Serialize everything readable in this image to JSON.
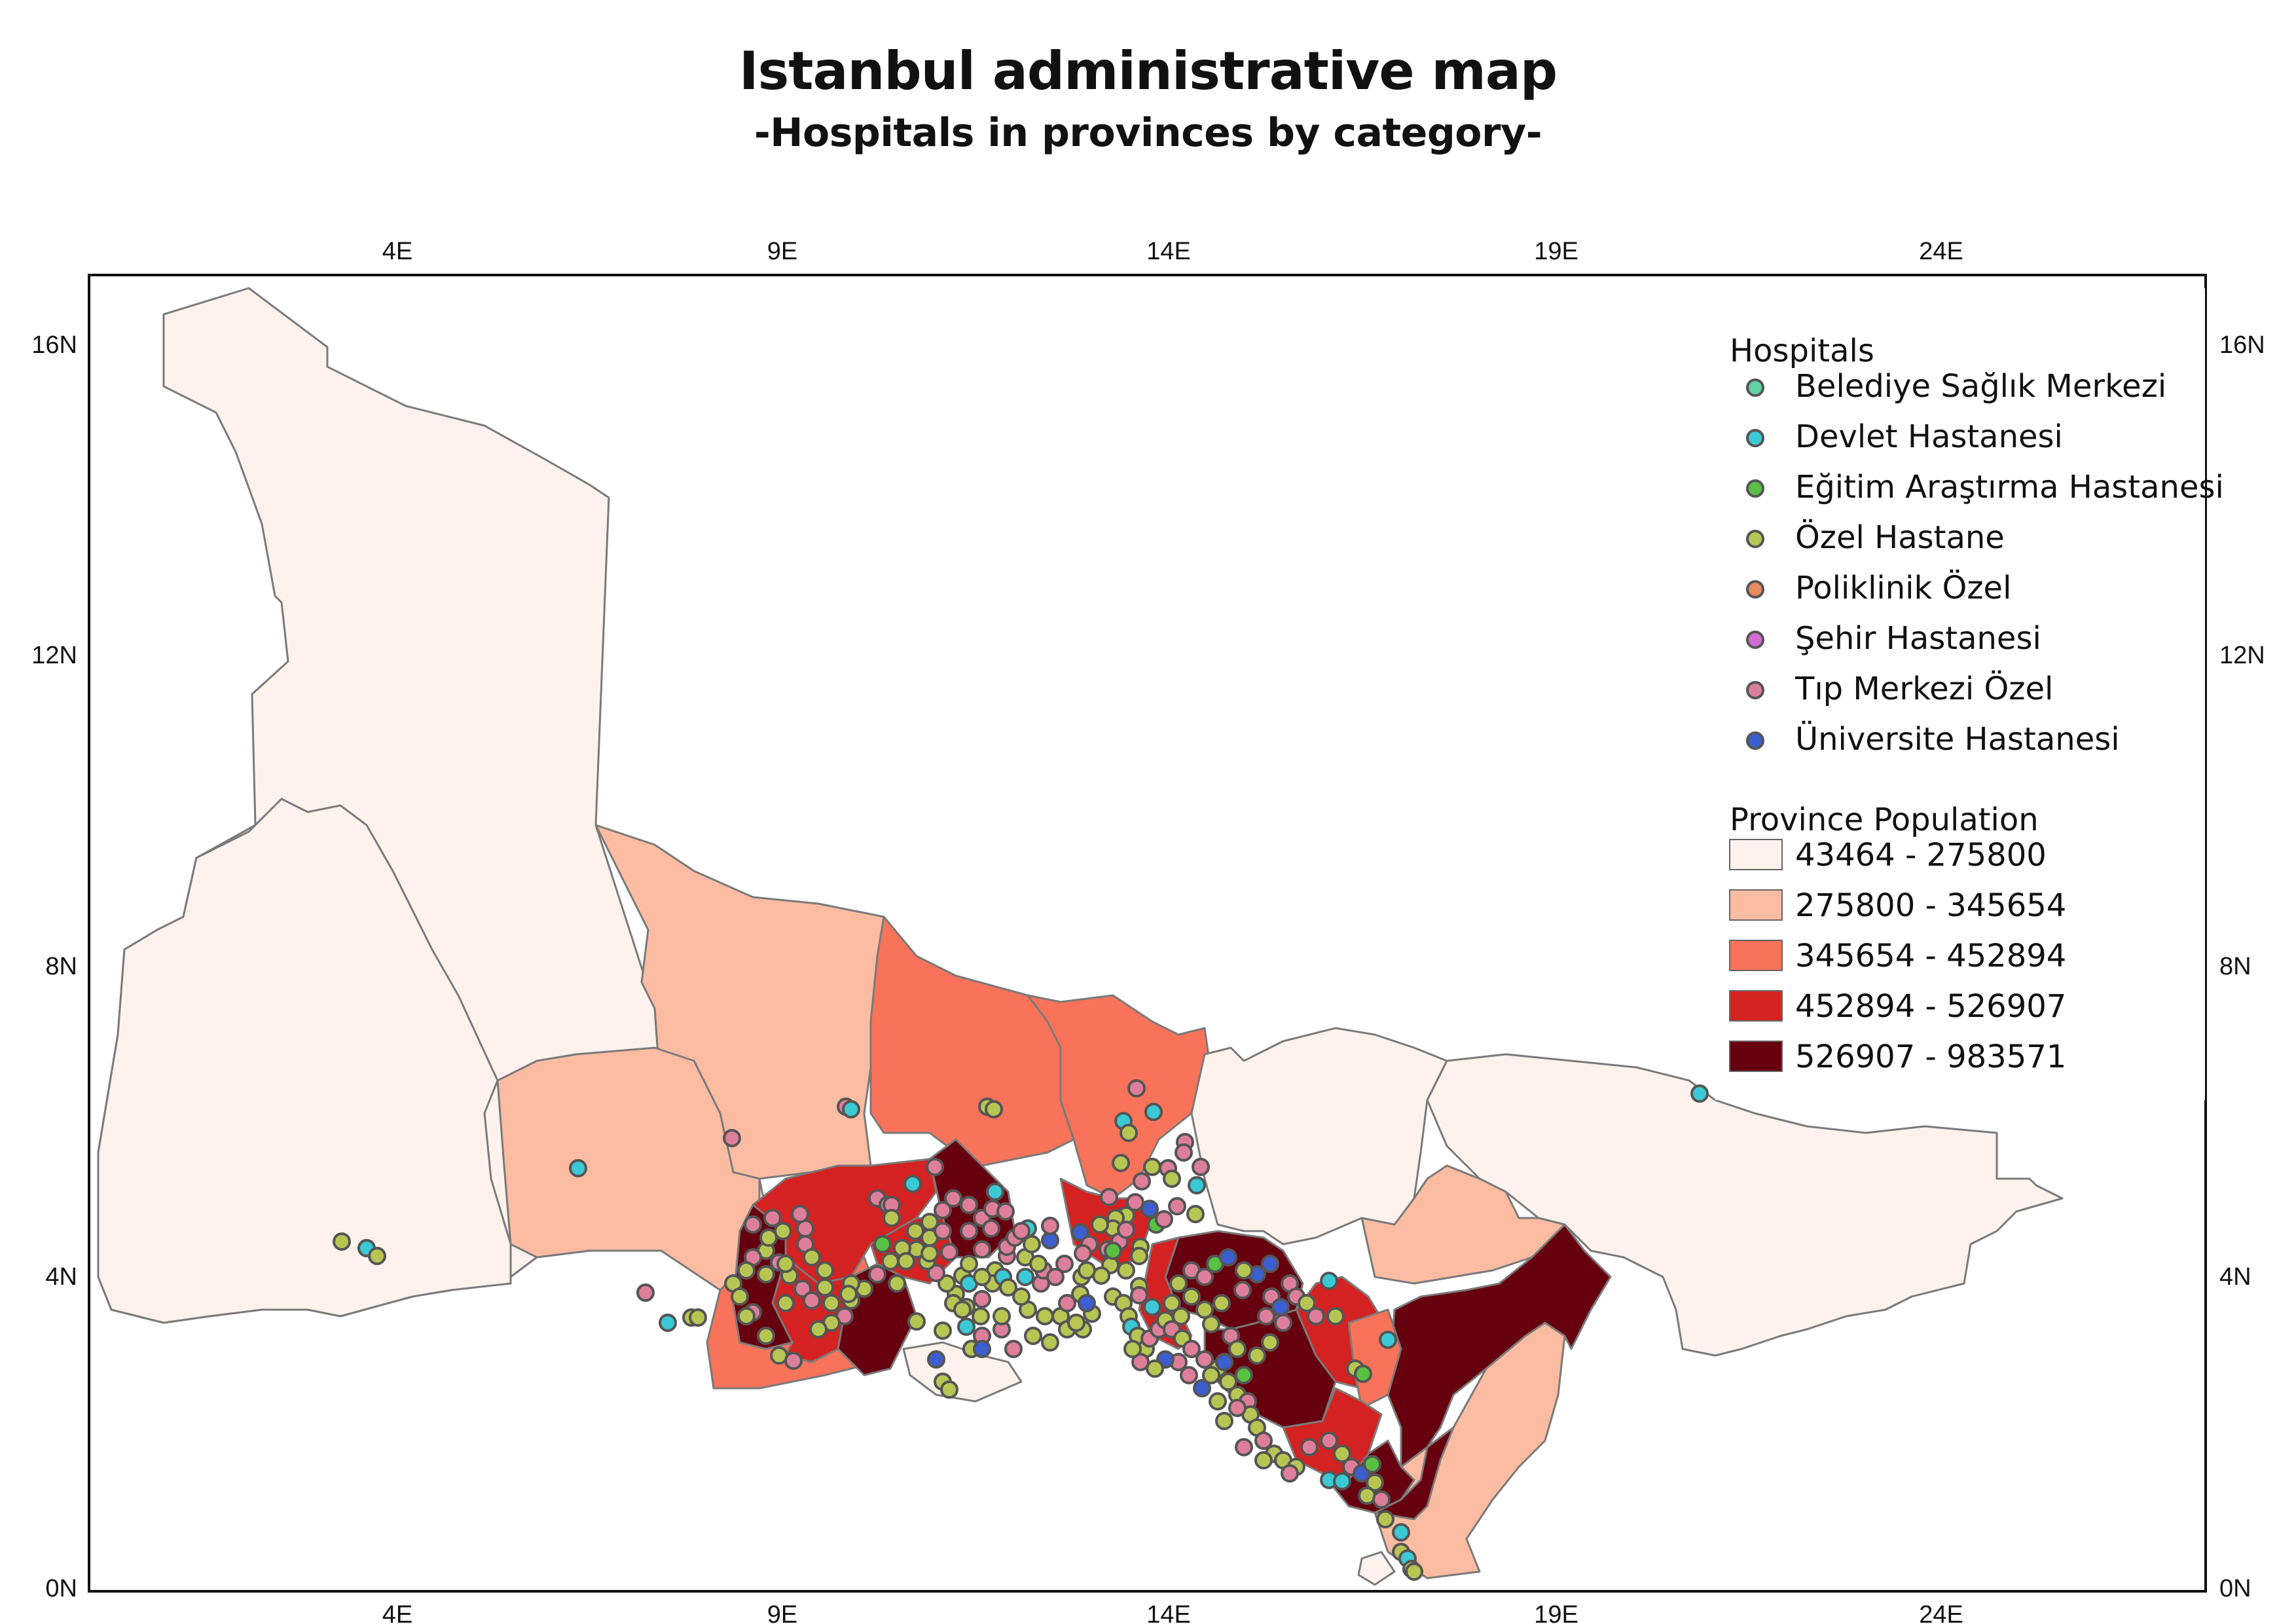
{
  "title": "Istanbul administrative map",
  "subtitle": "-Hospitals in provinces by category-",
  "axes": {
    "x_ticks": [
      "4E",
      "9E",
      "14E",
      "19E",
      "24E"
    ],
    "y_ticks": [
      "16N",
      "12N",
      "8N",
      "4N",
      "0N"
    ]
  },
  "legend_hospitals": {
    "title": "Hospitals",
    "items": [
      {
        "label": "Belediye Sağlık Merkezi",
        "color": "#5fd3a2"
      },
      {
        "label": "Devlet Hastanesi",
        "color": "#3cc9d6"
      },
      {
        "label": "Eğitim Araştırma Hastanesi",
        "color": "#58c043"
      },
      {
        "label": "Özel Hastane",
        "color": "#b7c653"
      },
      {
        "label": "Poliklinik Özel",
        "color": "#e58b5e"
      },
      {
        "label": "Şehir Hastanesi",
        "color": "#d16bd0"
      },
      {
        "label": "Tıp Merkezi Özel",
        "color": "#dd7f9b"
      },
      {
        "label": "Üniversite Hastanesi",
        "color": "#3b5fd1"
      }
    ]
  },
  "legend_population": {
    "title": "Province Population",
    "items": [
      {
        "label": "43464 - 275800",
        "color": "#fff2ed"
      },
      {
        "label": "275800 - 345654",
        "color": "#fbbca2"
      },
      {
        "label": "345654 - 452894",
        "color": "#f87359"
      },
      {
        "label": "452894 - 526907",
        "color": "#d42121"
      },
      {
        "label": "526907 - 983571",
        "color": "#66000f"
      }
    ]
  }
}
